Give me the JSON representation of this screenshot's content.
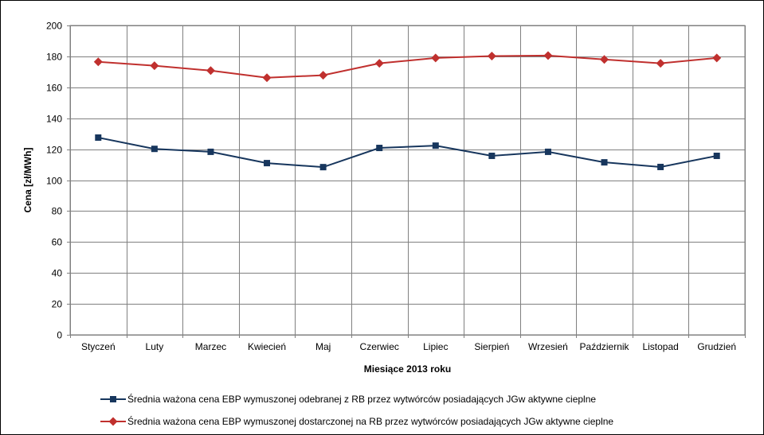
{
  "chart_data": {
    "type": "line",
    "categories": [
      "Styczeń",
      "Luty",
      "Marzec",
      "Kwiecień",
      "Maj",
      "Czerwiec",
      "Lipiec",
      "Sierpień",
      "Wrzesień",
      "Październik",
      "Listopad",
      "Grudzień"
    ],
    "series": [
      {
        "name": "Średnia ważona cena EBP wymuszonej odebranej z RB przez wytwórców posiadających JGw aktywne cieplne",
        "color": "#17365d",
        "marker": "square",
        "values": [
          127.5,
          120.2,
          118.3,
          111.0,
          108.4,
          120.8,
          122.3,
          115.7,
          118.3,
          111.5,
          108.5,
          115.7
        ]
      },
      {
        "name": "Średnia ważona cena EBP wymuszonej dostarczonej na RB przez wytwórców posiadających JGw aktywne cieplne",
        "color": "#c0302e",
        "marker": "diamond",
        "values": [
          176.5,
          174.0,
          170.8,
          166.2,
          167.8,
          175.5,
          179.0,
          180.2,
          180.5,
          178.0,
          175.5,
          179.0
        ]
      }
    ],
    "xlabel": "Miesiące 2013  roku",
    "ylabel": "Cena [zł/MWh]",
    "ylim": [
      0,
      200
    ],
    "yticks": [
      "0",
      "20",
      "40",
      "60",
      "80",
      "100",
      "120",
      "140",
      "160",
      "180",
      "200"
    ],
    "grid": true,
    "legend_position": "bottom"
  }
}
